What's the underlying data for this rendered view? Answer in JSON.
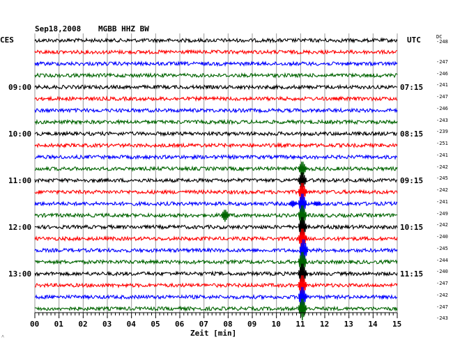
{
  "header": {
    "date": "Sep18,2008",
    "station": "MGBB HHZ BW",
    "left_tz": "CES",
    "right_tz": "UTC",
    "dc_label": "DC"
  },
  "chart_data": {
    "type": "line",
    "xlabel": "Zeit [min]",
    "xlim": [
      0,
      15
    ],
    "x_ticks": [
      "00",
      "01",
      "02",
      "03",
      "04",
      "05",
      "06",
      "07",
      "08",
      "09",
      "10",
      "11",
      "12",
      "13",
      "14",
      "15"
    ],
    "trace_colors": [
      "#000000",
      "#ff0000",
      "#0000ff",
      "#006400"
    ],
    "traces": [
      {
        "dc": "-248"
      },
      {
        "dc": "-247"
      },
      {
        "dc": "-246"
      },
      {
        "dc": "-241"
      },
      {
        "dc": "-247"
      },
      {
        "dc": "-246"
      },
      {
        "dc": "-243"
      },
      {
        "dc": "-239"
      },
      {
        "dc": "-251"
      },
      {
        "dc": "-241"
      },
      {
        "dc": "-242"
      },
      {
        "dc": "-245"
      },
      {
        "dc": "-242"
      },
      {
        "dc": "-241"
      },
      {
        "dc": "-249"
      },
      {
        "dc": "-242"
      },
      {
        "dc": "-240"
      },
      {
        "dc": "-245"
      },
      {
        "dc": "-244"
      },
      {
        "dc": "-240"
      },
      {
        "dc": "-247"
      },
      {
        "dc": "-242"
      },
      {
        "dc": "-247"
      },
      {
        "dc": "-243"
      }
    ],
    "left_time_labels": [
      {
        "trace": 4,
        "text": "09:00"
      },
      {
        "trace": 8,
        "text": "10:00"
      },
      {
        "trace": 12,
        "text": "11:00"
      },
      {
        "trace": 16,
        "text": "12:00"
      },
      {
        "trace": 20,
        "text": "13:00"
      }
    ],
    "right_time_labels": [
      {
        "trace": 4,
        "text": "07:15"
      },
      {
        "trace": 8,
        "text": "08:15"
      },
      {
        "trace": 12,
        "text": "09:15"
      },
      {
        "trace": 16,
        "text": "10:15"
      },
      {
        "trace": 20,
        "text": "11:15"
      }
    ],
    "events": [
      {
        "trace": 11,
        "minute": 11.1,
        "amp": 1.4
      },
      {
        "trace": 12,
        "minute": 11.1,
        "amp": 1.6
      },
      {
        "trace": 13,
        "minute": 11.1,
        "amp": 1.8
      },
      {
        "trace": 14,
        "minute": 11.1,
        "amp": 2.0
      },
      {
        "trace": 14,
        "minute": 10.7,
        "amp": 0.6
      },
      {
        "trace": 14,
        "minute": 11.7,
        "amp": 0.4
      },
      {
        "trace": 15,
        "minute": 7.9,
        "amp": 1.1
      },
      {
        "trace": 15,
        "minute": 11.1,
        "amp": 2.0
      },
      {
        "trace": 16,
        "minute": 11.1,
        "amp": 2.0
      },
      {
        "trace": 17,
        "minute": 11.1,
        "amp": 2.0
      },
      {
        "trace": 18,
        "minute": 11.15,
        "amp": 2.2
      },
      {
        "trace": 19,
        "minute": 11.1,
        "amp": 2.0
      },
      {
        "trace": 20,
        "minute": 11.1,
        "amp": 2.0
      },
      {
        "trace": 21,
        "minute": 11.1,
        "amp": 2.0
      },
      {
        "trace": 22,
        "minute": 11.1,
        "amp": 2.0
      },
      {
        "trace": 23,
        "minute": 11.1,
        "amp": 2.0
      }
    ]
  }
}
